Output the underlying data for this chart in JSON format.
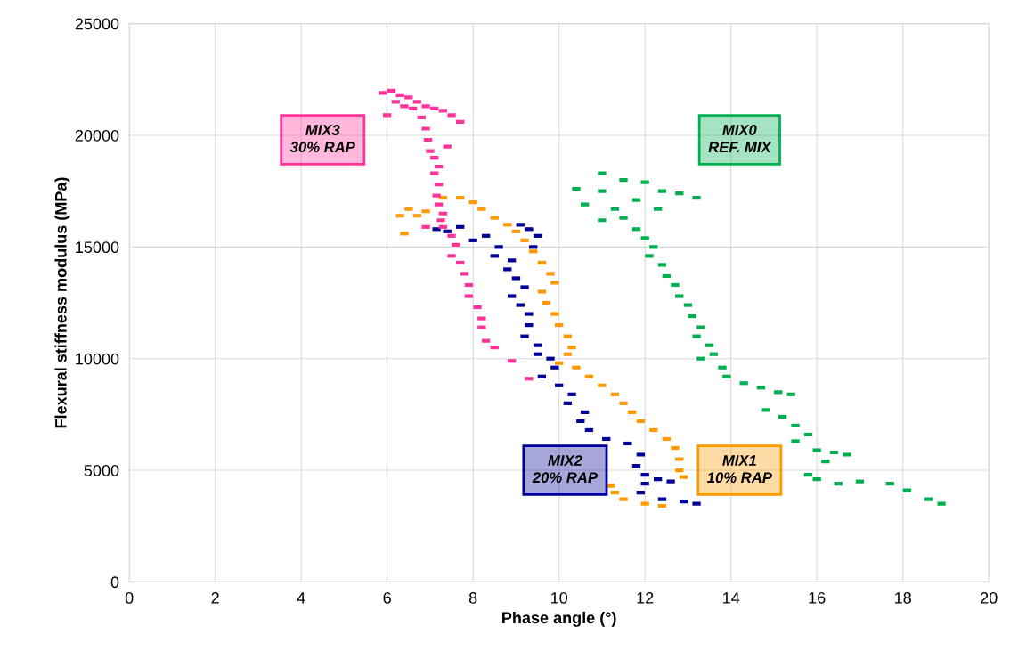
{
  "chart_data": {
    "type": "scatter",
    "xlabel": "Phase angle (°)",
    "ylabel": "Flexural stiffness modulus (MPa)",
    "xlim": [
      0,
      20
    ],
    "xticks": [
      0,
      2,
      4,
      6,
      8,
      10,
      12,
      14,
      16,
      18,
      20
    ],
    "ylim": [
      0,
      25000
    ],
    "yticks": [
      0,
      5000,
      10000,
      15000,
      20000,
      25000
    ],
    "grid": true,
    "series": [
      {
        "name": "MIX0\nREF. MIX",
        "color": "#00b050",
        "x": [
          11.0,
          11.5,
          12.0,
          12.4,
          12.8,
          13.2,
          11.0,
          10.4,
          10.6,
          11.3,
          11.8,
          12.3,
          11.5,
          11.0,
          11.8,
          12.0,
          12.2,
          12.1,
          12.4,
          12.5,
          12.7,
          12.8,
          13.0,
          13.1,
          13.3,
          13.2,
          13.5,
          13.6,
          13.3,
          13.8,
          13.9,
          14.3,
          14.7,
          15.1,
          15.4,
          14.8,
          15.2,
          15.5,
          15.8,
          15.5,
          16.0,
          16.4,
          16.2,
          16.7,
          15.8,
          16.5,
          17.0,
          17.7,
          18.1,
          18.6,
          18.9,
          16.0
        ],
        "values": [
          18300,
          18000,
          17900,
          17500,
          17400,
          17200,
          17500,
          17600,
          16900,
          16700,
          17100,
          16700,
          16300,
          16200,
          15800,
          15400,
          15000,
          14600,
          14200,
          13700,
          13300,
          12800,
          12400,
          11900,
          11400,
          11000,
          10600,
          10200,
          10000,
          9600,
          9200,
          8900,
          8700,
          8500,
          8400,
          7700,
          7400,
          7000,
          6600,
          6300,
          5900,
          5800,
          5400,
          5700,
          4800,
          4400,
          4500,
          4400,
          4100,
          3700,
          3500,
          4600
        ]
      },
      {
        "name": "MIX1\n10% RAP",
        "color": "#ff9900",
        "x": [
          6.5,
          6.3,
          6.7,
          6.9,
          7.3,
          7.7,
          8.0,
          8.2,
          8.5,
          8.8,
          9.0,
          9.2,
          9.4,
          9.6,
          9.8,
          9.9,
          9.6,
          9.7,
          9.9,
          10.0,
          10.2,
          10.3,
          10.2,
          10.0,
          10.4,
          10.7,
          11.0,
          11.3,
          11.5,
          11.7,
          11.9,
          12.2,
          12.5,
          12.7,
          12.8,
          12.8,
          12.9,
          11.2,
          11.3,
          11.5,
          12.0,
          12.4,
          6.4
        ],
        "values": [
          16700,
          16400,
          16400,
          16600,
          17200,
          17200,
          17000,
          16700,
          16300,
          16000,
          15700,
          15300,
          14800,
          14300,
          13800,
          13400,
          13000,
          12500,
          12000,
          11500,
          11000,
          10500,
          10200,
          9800,
          9600,
          9200,
          8800,
          8400,
          8000,
          7600,
          7200,
          6800,
          6400,
          6000,
          5500,
          5000,
          4700,
          4300,
          4000,
          3700,
          3500,
          3400,
          15600
        ]
      },
      {
        "name": "MIX2\n20% RAP",
        "color": "#000099",
        "x": [
          8.0,
          8.3,
          8.6,
          8.5,
          8.9,
          9.1,
          9.3,
          9.5,
          9.4,
          8.8,
          9.0,
          9.2,
          8.9,
          9.1,
          9.3,
          9.3,
          9.2,
          9.5,
          9.5,
          9.8,
          9.9,
          9.6,
          10.0,
          10.3,
          10.2,
          10.6,
          10.5,
          10.7,
          11.1,
          11.6,
          11.9,
          11.8,
          12.0,
          12.3,
          12.6,
          11.9,
          12.4,
          12.9,
          13.2,
          12.0,
          7.4,
          7.7,
          7.15
        ],
        "values": [
          15300,
          15500,
          15000,
          14600,
          14400,
          16000,
          15800,
          15500,
          15000,
          14000,
          13600,
          13200,
          12800,
          12400,
          12000,
          11500,
          11000,
          10600,
          10200,
          10000,
          9600,
          9200,
          8800,
          8400,
          8000,
          7600,
          7200,
          6800,
          6400,
          6200,
          5700,
          5200,
          4800,
          4600,
          4500,
          4000,
          3700,
          3600,
          3500,
          4400,
          15700,
          15900,
          15800
        ]
      },
      {
        "name": "MIX3\n30% RAP",
        "color": "#ff3399",
        "x": [
          5.9,
          6.1,
          6.3,
          6.5,
          6.7,
          6.9,
          7.1,
          7.3,
          7.5,
          7.7,
          6.2,
          6.4,
          6.6,
          6.8,
          6.9,
          6.95,
          7.0,
          7.1,
          7.2,
          7.1,
          7.2,
          7.15,
          7.2,
          7.3,
          7.25,
          7.3,
          7.5,
          7.6,
          7.5,
          7.7,
          7.8,
          7.9,
          7.9,
          8.1,
          8.2,
          8.2,
          8.3,
          8.5,
          8.9,
          9.3,
          6.0,
          7.4,
          6.9
        ],
        "values": [
          21900,
          22000,
          21800,
          21700,
          21500,
          21300,
          21200,
          21100,
          20900,
          20600,
          21500,
          21300,
          21200,
          20800,
          20300,
          19800,
          19300,
          19000,
          18600,
          18300,
          17800,
          17300,
          16900,
          16500,
          16200,
          15900,
          15500,
          15100,
          14600,
          14300,
          13800,
          13300,
          12800,
          12300,
          11800,
          11400,
          10800,
          10500,
          9900,
          9100,
          20900,
          19500,
          15900
        ]
      }
    ]
  }
}
